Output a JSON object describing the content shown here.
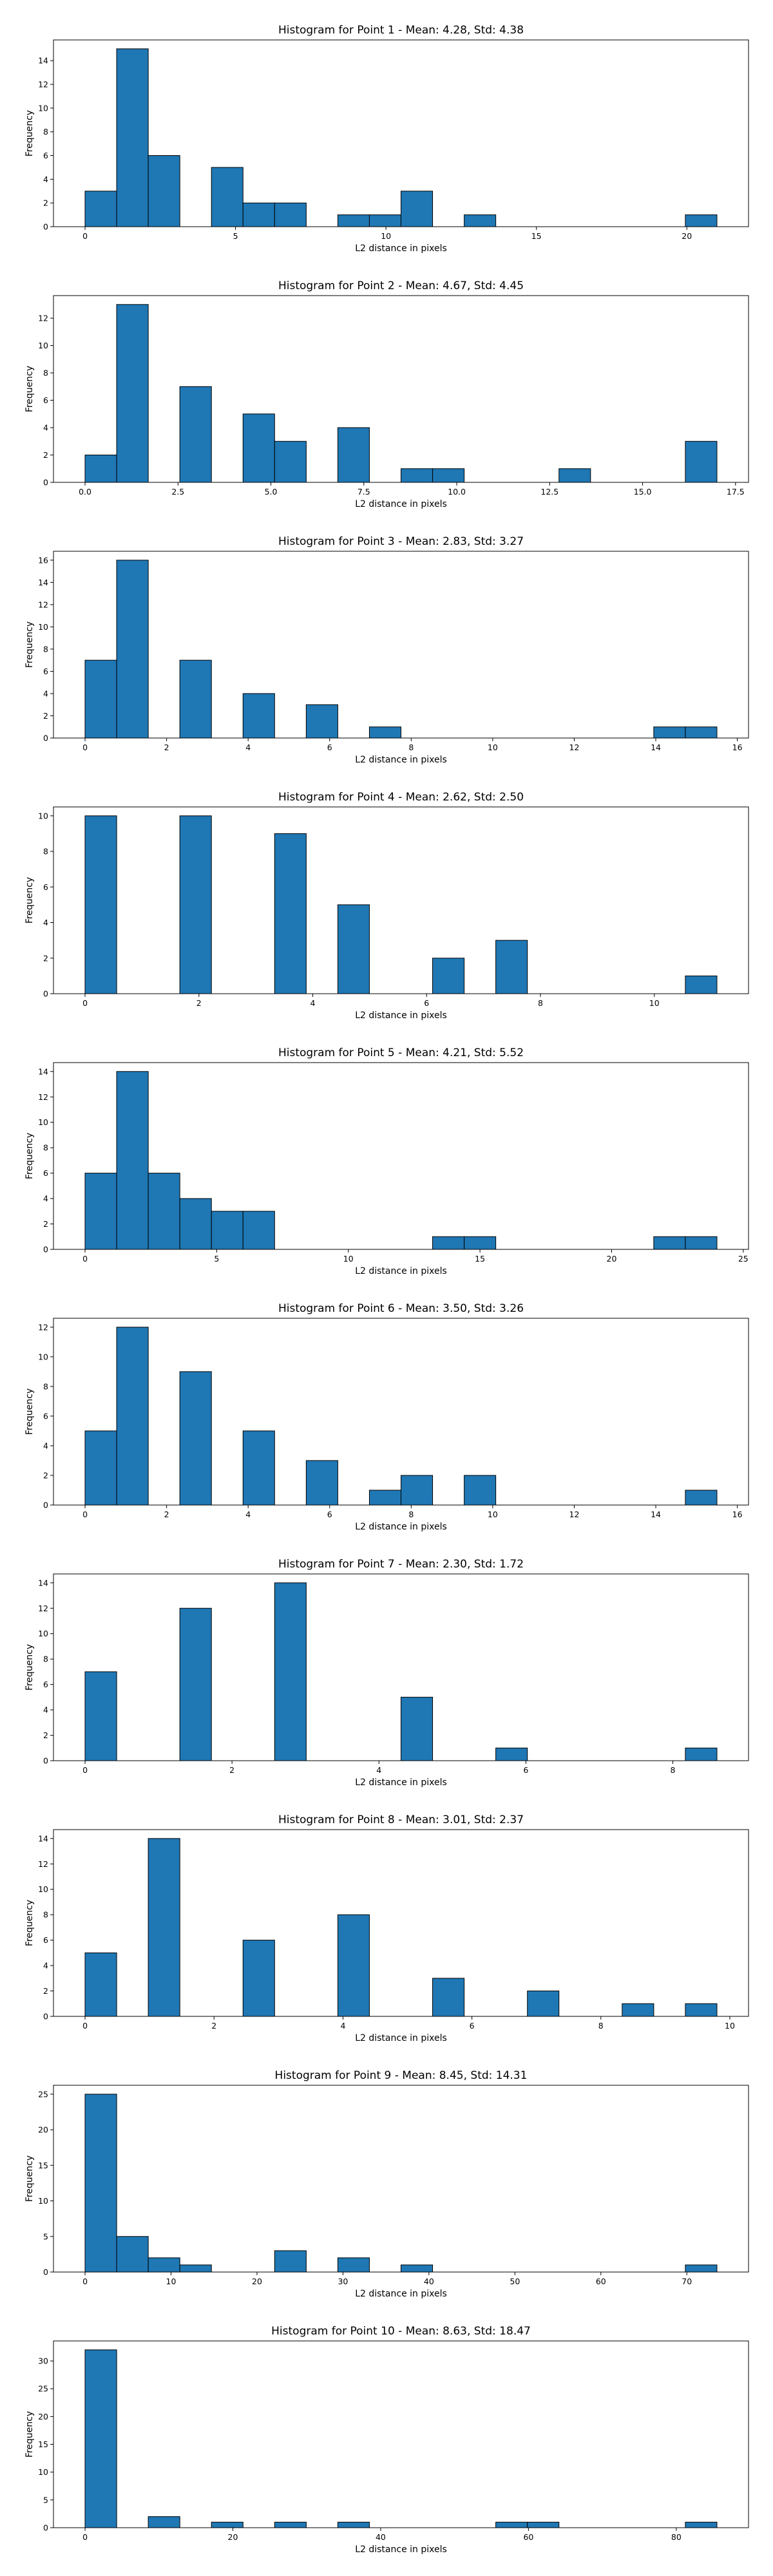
{
  "chart_data": [
    {
      "type": "bar",
      "title": "Histogram for Point 1 - Mean: 4.28, Std: 4.38",
      "xlabel": "L2 distance in pixels",
      "ylabel": "Frequency",
      "xlim": [
        -1.05,
        22.05
      ],
      "ylim": [
        0,
        15.75
      ],
      "xticks": [
        0,
        5,
        10,
        15,
        20
      ],
      "yticks": [
        0,
        2,
        4,
        6,
        8,
        10,
        12,
        14
      ],
      "bin_start": 0,
      "bin_width": 1.05,
      "values": [
        3,
        15,
        6,
        0,
        5,
        2,
        2,
        0,
        1,
        1,
        3,
        0,
        1,
        0,
        0,
        0,
        0,
        0,
        0,
        1
      ]
    },
    {
      "type": "bar",
      "title": "Histogram for Point 2 - Mean: 4.67, Std: 4.45",
      "xlabel": "L2 distance in pixels",
      "ylabel": "Frequency",
      "xlim": [
        -0.85,
        17.85
      ],
      "ylim": [
        0,
        13.65
      ],
      "xticks": [
        0.0,
        2.5,
        5.0,
        7.5,
        10.0,
        12.5,
        15.0,
        17.5
      ],
      "xtick_labels": [
        "0.0",
        "2.5",
        "5.0",
        "7.5",
        "10.0",
        "12.5",
        "15.0",
        "17.5"
      ],
      "yticks": [
        0,
        2,
        4,
        6,
        8,
        10,
        12
      ],
      "bin_start": 0,
      "bin_width": 0.85,
      "values": [
        2,
        13,
        0,
        7,
        0,
        5,
        3,
        0,
        4,
        0,
        1,
        1,
        0,
        0,
        0,
        1,
        0,
        0,
        0,
        3
      ]
    },
    {
      "type": "bar",
      "title": "Histogram for Point 3 - Mean: 2.83, Std: 3.27",
      "xlabel": "L2 distance in pixels",
      "ylabel": "Frequency",
      "xlim": [
        -0.775,
        16.275
      ],
      "ylim": [
        0,
        16.8
      ],
      "xticks": [
        0,
        2,
        4,
        6,
        8,
        10,
        12,
        14,
        16
      ],
      "yticks": [
        0,
        2,
        4,
        6,
        8,
        10,
        12,
        14,
        16
      ],
      "bin_start": 0,
      "bin_width": 0.775,
      "values": [
        7,
        16,
        0,
        7,
        0,
        4,
        0,
        3,
        0,
        1,
        0,
        0,
        0,
        0,
        0,
        0,
        0,
        0,
        1,
        1
      ]
    },
    {
      "type": "bar",
      "title": "Histogram for Point 4 - Mean: 2.62, Std: 2.50",
      "xlabel": "L2 distance in pixels",
      "ylabel": "Frequency",
      "xlim": [
        -0.555,
        11.655
      ],
      "ylim": [
        0,
        10.5
      ],
      "xticks": [
        0,
        2,
        4,
        6,
        8,
        10
      ],
      "yticks": [
        0,
        2,
        4,
        6,
        8,
        10
      ],
      "bin_start": 0,
      "bin_width": 0.555,
      "values": [
        10,
        0,
        0,
        10,
        0,
        0,
        9,
        0,
        5,
        0,
        0,
        2,
        0,
        3,
        0,
        0,
        0,
        0,
        0,
        1
      ]
    },
    {
      "type": "bar",
      "title": "Histogram for Point 5 - Mean: 4.21, Std: 5.52",
      "xlabel": "L2 distance in pixels",
      "ylabel": "Frequency",
      "xlim": [
        -1.2,
        25.2
      ],
      "ylim": [
        0,
        14.7
      ],
      "xticks": [
        0,
        5,
        10,
        15,
        20,
        25
      ],
      "yticks": [
        0,
        2,
        4,
        6,
        8,
        10,
        12,
        14
      ],
      "bin_start": 0,
      "bin_width": 1.2,
      "values": [
        6,
        14,
        6,
        4,
        3,
        3,
        0,
        0,
        0,
        0,
        0,
        1,
        1,
        0,
        0,
        0,
        0,
        0,
        1,
        1
      ]
    },
    {
      "type": "bar",
      "title": "Histogram for Point 6 - Mean: 3.50, Std: 3.26",
      "xlabel": "L2 distance in pixels",
      "ylabel": "Frequency",
      "xlim": [
        -0.775,
        16.275
      ],
      "ylim": [
        0,
        12.6
      ],
      "xticks": [
        0,
        2,
        4,
        6,
        8,
        10,
        12,
        14,
        16
      ],
      "yticks": [
        0,
        2,
        4,
        6,
        8,
        10,
        12
      ],
      "bin_start": 0,
      "bin_width": 0.775,
      "values": [
        5,
        12,
        0,
        9,
        0,
        5,
        0,
        3,
        0,
        1,
        2,
        0,
        2,
        0,
        0,
        0,
        0,
        0,
        0,
        1
      ]
    },
    {
      "type": "bar",
      "title": "Histogram for Point 7 - Mean: 2.30, Std: 1.72",
      "xlabel": "L2 distance in pixels",
      "ylabel": "Frequency",
      "xlim": [
        -0.43,
        9.03
      ],
      "ylim": [
        0,
        14.7
      ],
      "xticks": [
        0,
        2,
        4,
        6,
        8
      ],
      "yticks": [
        0,
        2,
        4,
        6,
        8,
        10,
        12,
        14
      ],
      "bin_start": 0,
      "bin_width": 0.43,
      "values": [
        7,
        0,
        0,
        12,
        0,
        0,
        14,
        0,
        0,
        0,
        5,
        0,
        0,
        1,
        0,
        0,
        0,
        0,
        0,
        1
      ]
    },
    {
      "type": "bar",
      "title": "Histogram for Point 8 - Mean: 3.01, Std: 2.37",
      "xlabel": "L2 distance in pixels",
      "ylabel": "Frequency",
      "xlim": [
        -0.49,
        10.29
      ],
      "ylim": [
        0,
        14.7
      ],
      "xticks": [
        0,
        2,
        4,
        6,
        8,
        10
      ],
      "yticks": [
        0,
        2,
        4,
        6,
        8,
        10,
        12,
        14
      ],
      "bin_start": 0,
      "bin_width": 0.49,
      "values": [
        5,
        0,
        14,
        0,
        0,
        6,
        0,
        0,
        8,
        0,
        0,
        3,
        0,
        0,
        2,
        0,
        0,
        1,
        0,
        1
      ]
    },
    {
      "type": "bar",
      "title": "Histogram for Point 9 - Mean: 8.45, Std: 14.31",
      "xlabel": "L2 distance in pixels",
      "ylabel": "Frequency",
      "xlim": [
        -3.675,
        77.175
      ],
      "ylim": [
        0,
        26.25
      ],
      "xticks": [
        0,
        10,
        20,
        30,
        40,
        50,
        60,
        70
      ],
      "yticks": [
        0,
        5,
        10,
        15,
        20,
        25
      ],
      "bin_start": 0,
      "bin_width": 3.675,
      "values": [
        25,
        5,
        2,
        1,
        0,
        0,
        3,
        0,
        2,
        0,
        1,
        0,
        0,
        0,
        0,
        0,
        0,
        0,
        0,
        1
      ]
    },
    {
      "type": "bar",
      "title": "Histogram for Point 10 - Mean: 8.63, Std: 18.47",
      "xlabel": "L2 distance in pixels",
      "ylabel": "Frequency",
      "xlim": [
        -4.275,
        89.775
      ],
      "ylim": [
        0,
        33.6
      ],
      "xticks": [
        0,
        20,
        40,
        60,
        80
      ],
      "yticks": [
        0,
        5,
        10,
        15,
        20,
        25,
        30
      ],
      "bin_start": 0,
      "bin_width": 4.275,
      "values": [
        32,
        0,
        2,
        0,
        1,
        0,
        1,
        0,
        1,
        0,
        0,
        0,
        0,
        1,
        1,
        0,
        0,
        0,
        0,
        1
      ]
    }
  ]
}
